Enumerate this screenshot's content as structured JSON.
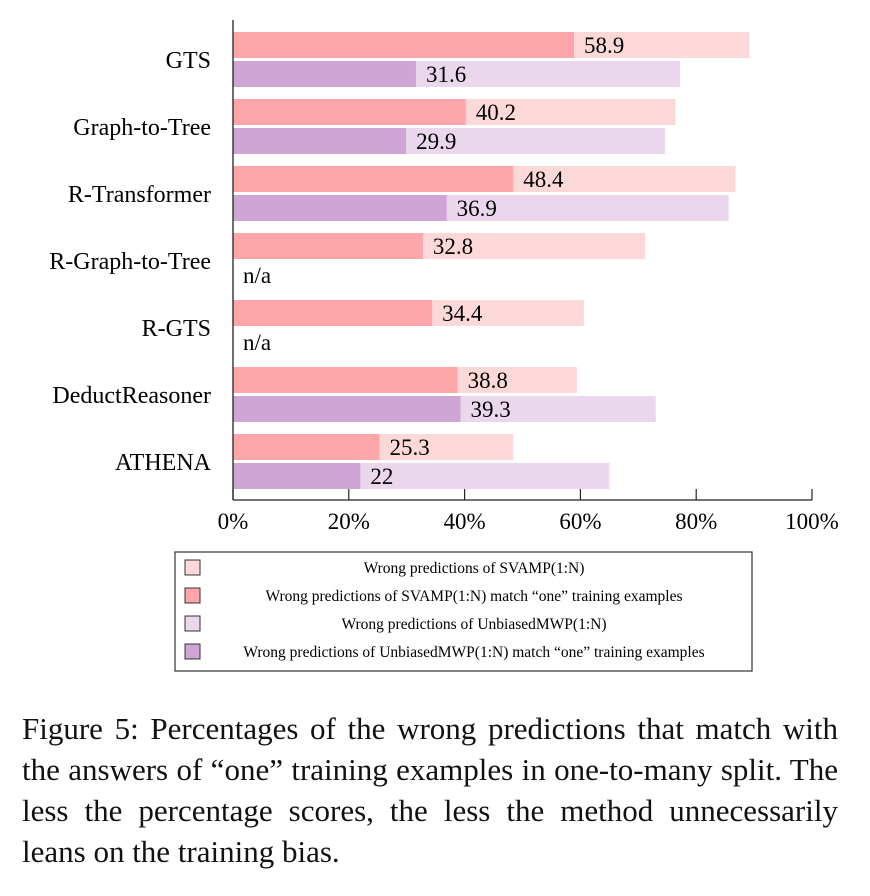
{
  "chart_data": {
    "type": "bar",
    "orientation": "horizontal",
    "categories": [
      "GTS",
      "Graph-to-Tree",
      "R-Transformer",
      "R-Graph-to-Tree",
      "R-GTS",
      "DeductReasoner",
      "ATHENA"
    ],
    "series": [
      {
        "name": "Wrong predictions of SVAMP(1:N)",
        "color": "#fdd8d9",
        "values": [
          89.2,
          76.4,
          86.8,
          71.2,
          60.6,
          59.4,
          48.4
        ]
      },
      {
        "name": "Wrong predictions of SVAMP(1:N) match “one” training examples",
        "color": "#fea6a9",
        "values": [
          58.9,
          40.2,
          48.4,
          32.8,
          34.4,
          38.8,
          25.3
        ],
        "labels": [
          "58.9",
          "40.2",
          "48.4",
          "32.8",
          "34.4",
          "38.8",
          "25.3"
        ]
      },
      {
        "name": "Wrong predictions of UnbiasedMWP(1:N)",
        "color": "#ead7ec",
        "values": [
          77.2,
          74.6,
          85.6,
          null,
          null,
          73.0,
          65.0
        ]
      },
      {
        "name": "Wrong predictions of UnbiasedMWP(1:N) match “one” training examples",
        "color": "#cea5d5",
        "values": [
          31.6,
          29.9,
          36.9,
          null,
          null,
          39.3,
          22
        ],
        "labels": [
          "31.6",
          "29.9",
          "36.9",
          "n/a",
          "n/a",
          "39.3",
          "22"
        ]
      }
    ],
    "xlim": [
      0,
      100
    ],
    "xticks": [
      "0%",
      "20%",
      "40%",
      "60%",
      "80%",
      "100%"
    ],
    "legend_position": "bottom",
    "grid": false,
    "caption": "Figure 5: Percentages of the wrong predictions that match with the answers of “one” training examples in one-to-many split. The less the percentage scores, the less the method unnecessarily leans on the training bias."
  }
}
